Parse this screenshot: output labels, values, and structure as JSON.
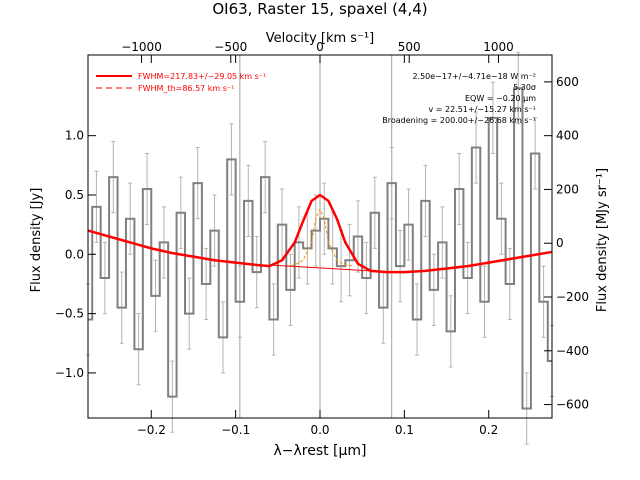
{
  "chart_data": {
    "type": "line",
    "title": "OI63, Raster 15, spaxel (4,4)",
    "xlabel": "λ−λrest [μm]",
    "ylabel": "Flux density [Jy]",
    "top_axis_label": "Velocity [km s⁻¹]",
    "right_axis_label": "Flux density [MJy sr⁻¹]",
    "xlim": [
      -0.275,
      0.275
    ],
    "ylim": [
      -1.38,
      1.68
    ],
    "velocity_lim": [
      -1300,
      1300
    ],
    "right_lim": [
      -650,
      700
    ],
    "x_ticks": [
      -0.2,
      -0.1,
      0.0,
      0.1,
      0.2
    ],
    "x_tick_labels": [
      "−0.2",
      "−0.1",
      "0.0",
      "0.1",
      "0.2"
    ],
    "y_ticks": [
      -1.0,
      -0.5,
      0.0,
      0.5,
      1.0
    ],
    "y_tick_labels": [
      "−1.0",
      "−0.5",
      "0.0",
      "0.5",
      "1.0"
    ],
    "velocity_ticks": [
      -1000,
      -500,
      0,
      500,
      1000
    ],
    "velocity_tick_labels": [
      "−1000",
      "−500",
      "0",
      "500",
      "1000"
    ],
    "right_ticks": [
      -600,
      -400,
      -200,
      0,
      200,
      400,
      600
    ],
    "right_tick_labels": [
      "−600",
      "−400",
      "−200",
      "0",
      "200",
      "400",
      "600"
    ],
    "vertical_lines": [
      -0.095,
      0.0,
      0.085
    ],
    "dashed_line": 0.0,
    "legend": {
      "placement": "top-left",
      "entries": [
        {
          "label": "FWHM=217.83+/−29.05 km s⁻¹",
          "color": "#ff0000",
          "style": "solid"
        },
        {
          "label": "FWHM_th=86.57 km s⁻¹",
          "color": "#ff0000",
          "style": "dashed"
        }
      ]
    },
    "annotations": [
      "2.50e−17+/−4.71e−18 W m⁻²",
      "5.30σ",
      "EQW = −0.20 μm",
      "v = 22.51+/−15.27 km s⁻¹",
      "Broadening = 200.00+/−26.68 km s⁻¹"
    ],
    "series": [
      {
        "name": "FWHM=217.83+/−29.05 km s⁻¹",
        "color": "#ff0000",
        "x": [
          -0.275,
          -0.25,
          -0.225,
          -0.2,
          -0.175,
          -0.15,
          -0.125,
          -0.1,
          -0.075,
          -0.06,
          -0.045,
          -0.03,
          -0.02,
          -0.01,
          0.0,
          0.01,
          0.02,
          0.03,
          0.045,
          0.06,
          0.08,
          0.1,
          0.125,
          0.15,
          0.175,
          0.2,
          0.225,
          0.25,
          0.275
        ],
        "y": [
          0.2,
          0.15,
          0.1,
          0.05,
          0.01,
          -0.02,
          -0.05,
          -0.07,
          -0.09,
          -0.1,
          -0.05,
          0.1,
          0.28,
          0.45,
          0.5,
          0.45,
          0.3,
          0.1,
          -0.08,
          -0.14,
          -0.15,
          -0.15,
          -0.14,
          -0.12,
          -0.1,
          -0.07,
          -0.04,
          -0.01,
          0.02
        ]
      },
      {
        "name": "FWHM_th=86.57 km s⁻¹",
        "color": "#ff8c00",
        "x": [
          -0.04,
          -0.03,
          -0.02,
          -0.01,
          -0.005,
          0.0,
          0.005,
          0.01,
          0.02,
          0.03,
          0.04
        ],
        "y": [
          -0.1,
          -0.09,
          -0.05,
          0.1,
          0.3,
          0.38,
          0.3,
          0.1,
          -0.05,
          -0.09,
          -0.1
        ]
      },
      {
        "name": "data",
        "color": "#808080",
        "x": [
          -0.275,
          -0.265,
          -0.255,
          -0.245,
          -0.235,
          -0.225,
          -0.215,
          -0.205,
          -0.195,
          -0.185,
          -0.175,
          -0.165,
          -0.155,
          -0.145,
          -0.135,
          -0.125,
          -0.115,
          -0.105,
          -0.095,
          -0.085,
          -0.075,
          -0.065,
          -0.055,
          -0.045,
          -0.035,
          -0.025,
          -0.015,
          -0.005,
          0.005,
          0.015,
          0.025,
          0.035,
          0.045,
          0.055,
          0.065,
          0.075,
          0.085,
          0.095,
          0.105,
          0.115,
          0.125,
          0.135,
          0.145,
          0.155,
          0.165,
          0.175,
          0.185,
          0.195,
          0.205,
          0.215,
          0.225,
          0.235,
          0.245,
          0.255,
          0.265,
          0.275
        ],
        "y": [
          -0.55,
          0.4,
          -0.2,
          0.65,
          -0.45,
          0.3,
          -0.8,
          0.55,
          -0.35,
          0.1,
          -1.2,
          0.35,
          -0.5,
          0.6,
          -0.25,
          0.2,
          -0.7,
          0.8,
          -0.4,
          0.45,
          -0.15,
          0.65,
          -0.55,
          0.25,
          -0.3,
          0.1,
          0.05,
          0.2,
          0.3,
          0.05,
          -0.1,
          -0.05,
          0.15,
          -0.2,
          0.35,
          -0.45,
          0.6,
          -0.1,
          0.25,
          -0.55,
          0.45,
          -0.3,
          0.1,
          -0.65,
          0.55,
          -0.2,
          0.9,
          -0.4,
          1.15,
          0.3,
          -0.25,
          1.4,
          -1.3,
          0.85,
          -0.4,
          -0.9
        ],
        "error": 0.3
      }
    ]
  }
}
